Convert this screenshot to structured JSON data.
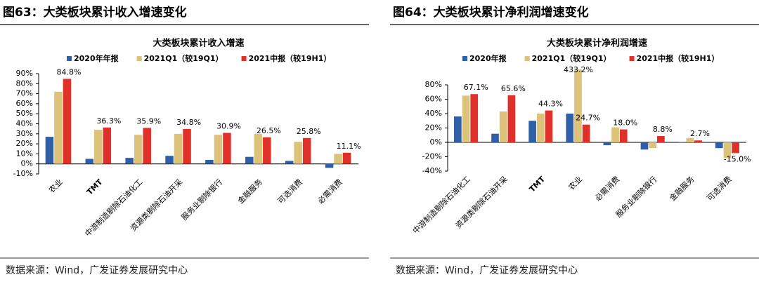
{
  "chart_data": [
    {
      "type": "bar",
      "figure_title": "图63：大类板块累计收入增速变化",
      "title": "大类板块累计收入增速",
      "source": "数据来源：Wind，广发证券发展研究中心",
      "categories": [
        "农业",
        "TMT",
        "中游制造剔除石油化工",
        "资源类剔除石油开采",
        "服务业剔除银行",
        "金融服务",
        "可选消费",
        "必需消费"
      ],
      "series": [
        {
          "name": "2020年年报",
          "color": "#2f5fa7",
          "values": [
            27,
            5,
            6,
            8,
            4,
            7,
            3,
            -4
          ]
        },
        {
          "name": "2021Q1（较19Q1）",
          "color": "#dcc379",
          "values": [
            72,
            34,
            29,
            30,
            29,
            30,
            22,
            10
          ]
        },
        {
          "name": "2021中报（较19H1）",
          "color": "#e0302a",
          "values": [
            84.8,
            36.3,
            35.9,
            34.8,
            30.9,
            26.5,
            25.8,
            11.1
          ],
          "value_labels": [
            "84.8%",
            "36.3%",
            "35.9%",
            "34.8%",
            "30.9%",
            "26.5%",
            "25.8%",
            "11.1%"
          ]
        }
      ],
      "ylim": [
        -10,
        90
      ],
      "yticks": [
        {
          "value": -10,
          "label": "-10%"
        },
        {
          "value": 0,
          "label": "0%"
        },
        {
          "value": 10,
          "label": "10%"
        },
        {
          "value": 20,
          "label": "20%"
        },
        {
          "value": 30,
          "label": "30%"
        },
        {
          "value": 40,
          "label": "40%"
        },
        {
          "value": 50,
          "label": "50%"
        },
        {
          "value": 60,
          "label": "60%"
        },
        {
          "value": 70,
          "label": "70%"
        },
        {
          "value": 80,
          "label": "80%"
        },
        {
          "value": 90,
          "label": "90%"
        }
      ],
      "grid": false
    },
    {
      "type": "bar",
      "figure_title": "图64：大类板块累计净利润增速变化",
      "title": "大类板块累计净利润增速",
      "source": "数据来源：Wind，广发证券发展研究中心",
      "categories": [
        "中游制造剔除石油化工",
        "资源类剔除石油开采",
        "TMT",
        "农业",
        "必需消费",
        "服务业剔除银行",
        "金融服务",
        "可选消费"
      ],
      "series": [
        {
          "name": "2020年报",
          "color": "#2f5fa7",
          "values": [
            36,
            12,
            30,
            40,
            -4,
            -10,
            0.5,
            -8
          ]
        },
        {
          "name": "2021Q1（较19Q1）",
          "color": "#dcc379",
          "values": [
            65,
            43,
            40,
            433.2,
            21,
            -8,
            6,
            -22
          ],
          "value_labels": [
            null,
            null,
            null,
            "433.2%",
            null,
            null,
            null,
            null
          ]
        },
        {
          "name": "2021中报（较19H1）",
          "color": "#e0302a",
          "values": [
            67.1,
            65.6,
            44.3,
            24.7,
            18.0,
            8.8,
            2.7,
            -15.0
          ],
          "value_labels": [
            "67.1%",
            "65.6%",
            "44.3%",
            "24.7%",
            "18.0%",
            "8.8%",
            "2.7%",
            "-15.0%"
          ]
        }
      ],
      "ylim": [
        -40,
        80
      ],
      "yticks": [
        {
          "value": -40,
          "label": "-40%"
        },
        {
          "value": -20,
          "label": "-20%"
        },
        {
          "value": 0,
          "label": "0%"
        },
        {
          "value": 20,
          "label": "20%"
        },
        {
          "value": 40,
          "label": "40%"
        },
        {
          "value": 60,
          "label": "60%"
        },
        {
          "value": 80,
          "label": "80%"
        }
      ],
      "grid": false
    }
  ]
}
